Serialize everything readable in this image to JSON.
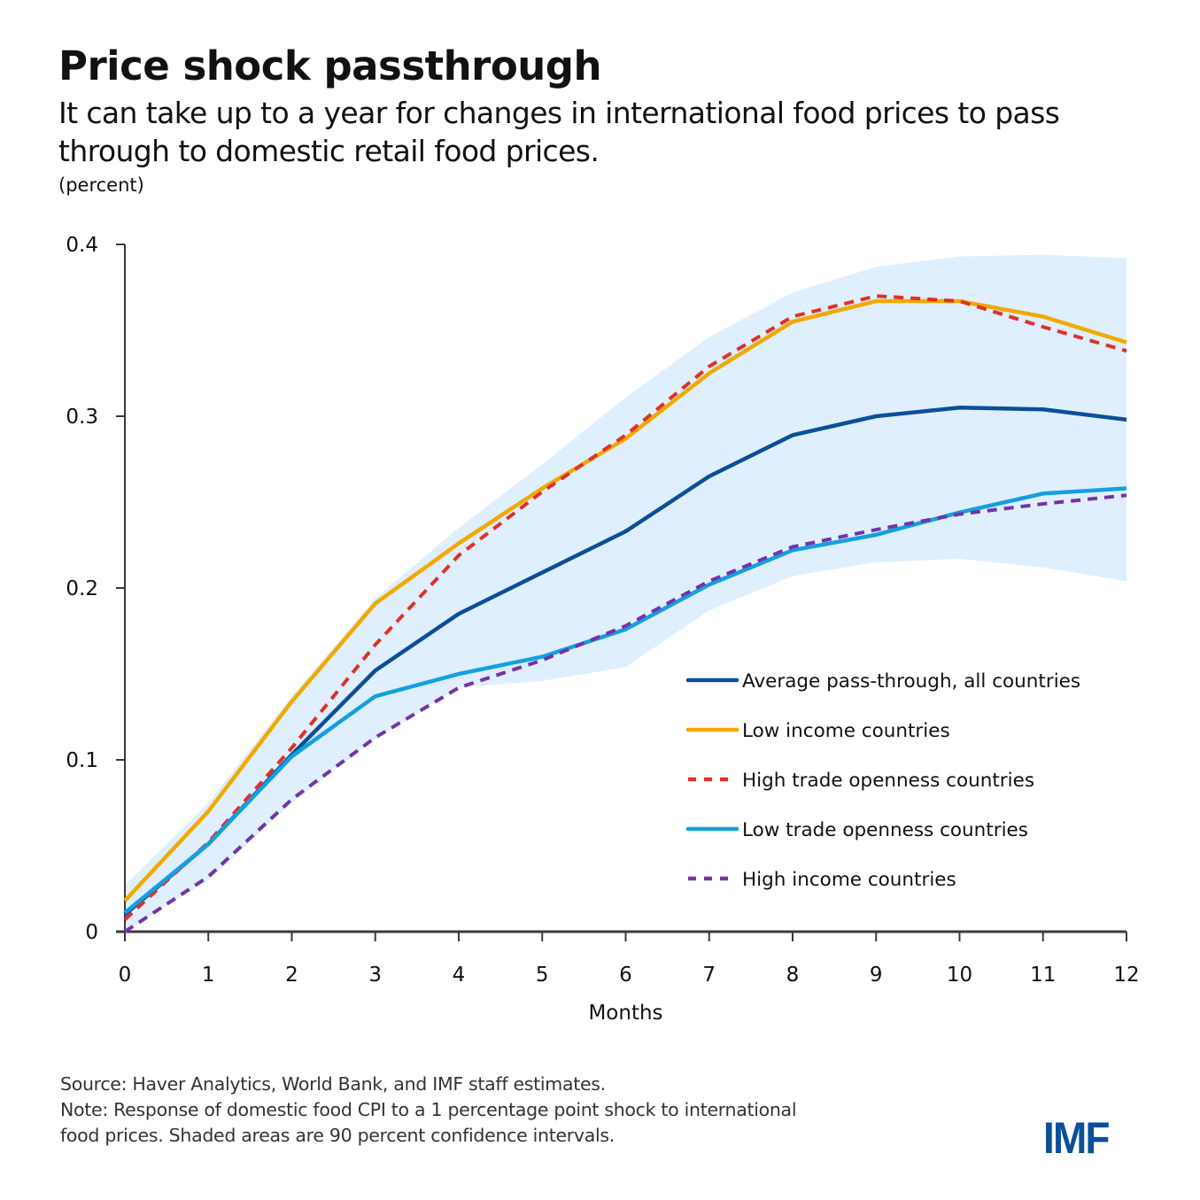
{
  "header": {
    "title": "Price shock passthrough",
    "subtitle": "It can take up to a year for changes in international food prices to pass through to domestic retail food prices.",
    "unit": "(percent)"
  },
  "footer": {
    "source": "Source: Haver Analytics, World Bank, and IMF staff estimates.",
    "note_line1": "Note: Response of domestic food CPI to a 1 percentage point shock to international",
    "note_line2": "food prices. Shaded areas are 90 percent confidence intervals.",
    "logo": "IMF"
  },
  "colors": {
    "average": "#0b4f9a",
    "low_income": "#f2a900",
    "high_trade": "#e03127",
    "low_trade": "#14a0e0",
    "high_income": "#7433a6",
    "band": "#dfeffd",
    "axis": "#3a3a3a",
    "logo": "#0a4f9b"
  },
  "chart_data": {
    "type": "line",
    "title": "Price shock passthrough",
    "xlabel": "Months",
    "ylabel": "(percent)",
    "x": [
      0,
      1,
      2,
      3,
      4,
      5,
      6,
      7,
      8,
      9,
      10,
      11,
      12
    ],
    "xlim": [
      0,
      12
    ],
    "ylim": [
      0,
      0.4
    ],
    "yticks": [
      0,
      0.1,
      0.2,
      0.3,
      0.4
    ],
    "ytick_labels": [
      "0",
      "0.1",
      "0.2",
      "0.3",
      "0.4"
    ],
    "xtick_labels": [
      "0",
      "1",
      "2",
      "3",
      "4",
      "5",
      "6",
      "7",
      "8",
      "9",
      "10",
      "11",
      "12"
    ],
    "grid": false,
    "legend_position": "right-center",
    "confidence_band": {
      "name": "90 percent confidence interval",
      "upper": [
        0.027,
        0.075,
        0.137,
        0.194,
        0.235,
        0.272,
        0.311,
        0.346,
        0.372,
        0.387,
        0.393,
        0.394,
        0.392
      ],
      "lower": [
        0.0,
        0.03,
        0.075,
        0.112,
        0.142,
        0.146,
        0.154,
        0.187,
        0.207,
        0.215,
        0.217,
        0.212,
        0.204
      ]
    },
    "series": [
      {
        "key": "average",
        "name": "Average pass-through, all countries",
        "dashed": false,
        "values": [
          0.01,
          0.051,
          0.103,
          0.152,
          0.185,
          0.209,
          0.233,
          0.265,
          0.289,
          0.3,
          0.305,
          0.304,
          0.298
        ]
      },
      {
        "key": "low_income",
        "name": "Low income countries",
        "dashed": false,
        "values": [
          0.018,
          0.07,
          0.134,
          0.191,
          0.226,
          0.258,
          0.287,
          0.325,
          0.355,
          0.367,
          0.367,
          0.358,
          0.343
        ]
      },
      {
        "key": "high_trade",
        "name": "High trade openness countries",
        "dashed": true,
        "values": [
          0.007,
          0.052,
          0.107,
          0.167,
          0.219,
          0.256,
          0.289,
          0.329,
          0.358,
          0.37,
          0.367,
          0.352,
          0.338
        ]
      },
      {
        "key": "low_trade",
        "name": "Low trade openness countries",
        "dashed": false,
        "values": [
          0.011,
          0.051,
          0.102,
          0.137,
          0.15,
          0.16,
          0.176,
          0.202,
          0.222,
          0.231,
          0.244,
          0.255,
          0.258
        ]
      },
      {
        "key": "high_income",
        "name": "High income countries",
        "dashed": true,
        "values": [
          0.0,
          0.032,
          0.077,
          0.113,
          0.142,
          0.158,
          0.178,
          0.204,
          0.224,
          0.234,
          0.243,
          0.249,
          0.254
        ]
      }
    ]
  }
}
